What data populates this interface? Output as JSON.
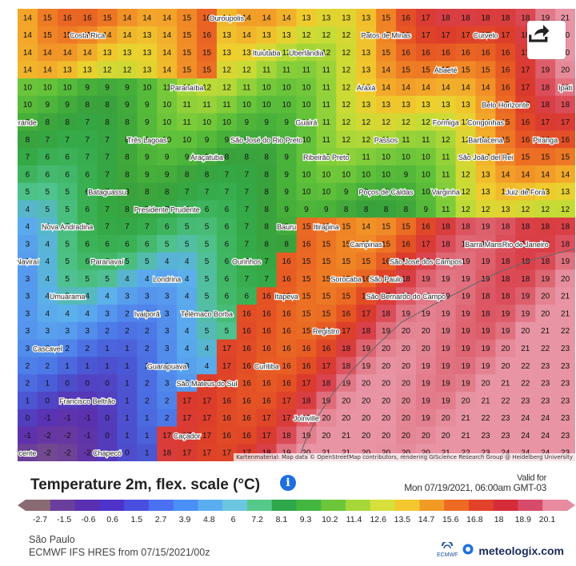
{
  "map": {
    "attribution": "Kartenmaterial: Map data © OpenStreetMap contributors, rendering GIScience Research Group @ Heidelberg University",
    "cities": [
      {
        "name": "Costa Rica",
        "c": [
          3,
          1
        ]
      },
      {
        "name": "Ouroupolis",
        "c": [
          10,
          0
        ]
      },
      {
        "name": "Patos de Minas",
        "c": [
          18,
          1
        ]
      },
      {
        "name": "Curvelo",
        "c": [
          23,
          1
        ]
      },
      {
        "name": "Ituiutaba",
        "c": [
          12,
          2
        ]
      },
      {
        "name": "Uberlândia",
        "c": [
          14,
          2
        ]
      },
      {
        "name": "Abaeté",
        "c": [
          21,
          3
        ]
      },
      {
        "name": "Ipati",
        "c": [
          27,
          4
        ]
      },
      {
        "name": "Araxá",
        "c": [
          17,
          4
        ]
      },
      {
        "name": "Paranaíba",
        "c": [
          8,
          4
        ]
      },
      {
        "name": "Belo Horizonte",
        "c": [
          24,
          5
        ]
      },
      {
        "name": "Guairá",
        "c": [
          14,
          6
        ]
      },
      {
        "name": "Formiga",
        "c": [
          21,
          6
        ]
      },
      {
        "name": "Congonhas",
        "c": [
          23,
          6
        ]
      },
      {
        "name": "Barbacena",
        "c": [
          23,
          7
        ]
      },
      {
        "name": "Piranga",
        "c": [
          26,
          7
        ]
      },
      {
        "name": "rande",
        "c": [
          0,
          6
        ]
      },
      {
        "name": "Três Lagoas",
        "c": [
          6,
          7
        ]
      },
      {
        "name": "São José do Rio Preto",
        "c": [
          12,
          7
        ]
      },
      {
        "name": "Passos",
        "c": [
          18,
          7
        ]
      },
      {
        "name": "São João del Rei",
        "c": [
          23,
          8
        ]
      },
      {
        "name": "Ribeirão Preto",
        "c": [
          15,
          8
        ]
      },
      {
        "name": "Araçatuba",
        "c": [
          9,
          8
        ]
      },
      {
        "name": "Varginha",
        "c": [
          21,
          10
        ]
      },
      {
        "name": "Bataguassu",
        "c": [
          4,
          10
        ]
      },
      {
        "name": "Poços de Caldas",
        "c": [
          18,
          10
        ]
      },
      {
        "name": "Juiz de Fora",
        "c": [
          25,
          10
        ]
      },
      {
        "name": "Presidente Prudente",
        "c": [
          7,
          11
        ]
      },
      {
        "name": "Nova Andradina",
        "c": [
          2,
          12
        ]
      },
      {
        "name": "Bauru",
        "c": [
          13,
          12
        ]
      },
      {
        "name": "Itirapina",
        "c": [
          15,
          12
        ]
      },
      {
        "name": "Barra Mansa",
        "c": [
          23,
          13
        ]
      },
      {
        "name": "Naviraí",
        "c": [
          0,
          14
        ]
      },
      {
        "name": "Paranavaí",
        "c": [
          4,
          14
        ]
      },
      {
        "name": "Ourinhos",
        "c": [
          11,
          14
        ]
      },
      {
        "name": "Campinas",
        "c": [
          17,
          13
        ]
      },
      {
        "name": "Rio de Janeiro",
        "c": [
          25,
          13
        ]
      },
      {
        "name": "São José dos Campos",
        "c": [
          20,
          14
        ]
      },
      {
        "name": "Londrina",
        "c": [
          7,
          15
        ]
      },
      {
        "name": "Sorocaba",
        "c": [
          16,
          15
        ]
      },
      {
        "name": "São Paulo",
        "c": [
          18,
          15
        ]
      },
      {
        "name": "Umuarama",
        "c": [
          2,
          16
        ]
      },
      {
        "name": "Itapeva",
        "c": [
          13,
          16
        ]
      },
      {
        "name": "São Bernardo do Campo",
        "c": [
          19,
          16
        ]
      },
      {
        "name": "Ivaiporã",
        "c": [
          6,
          17
        ]
      },
      {
        "name": "Telêmaco Borba",
        "c": [
          9,
          17
        ]
      },
      {
        "name": "Registro",
        "c": [
          15,
          18
        ]
      },
      {
        "name": "Cascavel",
        "c": [
          1,
          19
        ]
      },
      {
        "name": "Guarapuava",
        "c": [
          7,
          20
        ]
      },
      {
        "name": "Curitiba",
        "c": [
          12,
          20
        ]
      },
      {
        "name": "São Mateus do Sul",
        "c": [
          9,
          21
        ]
      },
      {
        "name": "Francisco Beltrão",
        "c": [
          3,
          22
        ]
      },
      {
        "name": "Joinville",
        "c": [
          14,
          23
        ]
      },
      {
        "name": "Caçador",
        "c": [
          8,
          24
        ]
      },
      {
        "name": "cente",
        "c": [
          0,
          25
        ]
      },
      {
        "name": "Chapecó",
        "c": [
          4,
          25
        ]
      }
    ]
  },
  "legend": {
    "title": "Temperature 2m, flex. scale (°C)",
    "valid_label": "Valid for",
    "valid_value": "Mon 07/19/2021, 06:00am GMT-03",
    "ticks": [
      "-2.7",
      "-1.5",
      "-0.6",
      "0.6",
      "1.5",
      "2.7",
      "3.9",
      "4.8",
      "6",
      "7.2",
      "8.1",
      "9.3",
      "10.2",
      "11.4",
      "12.6",
      "13.5",
      "14.7",
      "15.6",
      "16.8",
      "18",
      "18.9",
      "20.1"
    ],
    "colors": [
      "#8a6a72",
      "#6a3f9c",
      "#5a2fb0",
      "#4d33c9",
      "#4a4ee0",
      "#4a6ff0",
      "#4a8ff5",
      "#5aaef0",
      "#6cc6e0",
      "#55c98a",
      "#2ea84a",
      "#43b640",
      "#6cc63a",
      "#a6d83a",
      "#d7e03a",
      "#f2c82e",
      "#f29a26",
      "#ee6a22",
      "#e2412a",
      "#d62c3a",
      "#d84a6a",
      "#e88aa0"
    ]
  },
  "footer": {
    "region": "São Paulo",
    "model": "ECMWF IFS HRES from 07/15/2021/00z",
    "ecmwf": "ECMWF",
    "brand": "meteologix.com"
  }
}
